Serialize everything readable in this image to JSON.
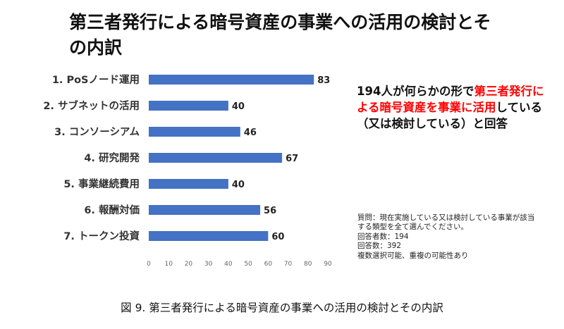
{
  "title": "第三者発行による暗号資産の事業への活用の検討とその内訳",
  "chart_data": {
    "type": "bar",
    "orientation": "horizontal",
    "categories": [
      "1. PoSノード運用",
      "2. サブネットの活用",
      "3. コンソーシアム",
      "4. 研究開発",
      "5. 事業継続費用",
      "6. 報酬対価",
      "7. トークン投資"
    ],
    "values": [
      83,
      40,
      46,
      67,
      40,
      56,
      60
    ],
    "xlim": [
      0,
      90
    ],
    "xticks": [
      0,
      10,
      20,
      30,
      40,
      50,
      60,
      70,
      80,
      90
    ],
    "bar_color": "#4472c4",
    "grid": false,
    "legend": "none"
  },
  "callout": {
    "part1": "194人が何らかの形で",
    "part2_red": "第三者発行による暗号資産を事業に活用",
    "part3": "している（又は検討している）と回答",
    "highlight_color": "#ff0000"
  },
  "notes": [
    "質問：現在実施している又は検討している事業が該当する類型を全て選んでください。",
    "回答者数：194",
    "回答数：392",
    "複数選択可能、重複の可能性あり"
  ],
  "caption": "図 9. 第三者発行による暗号資産の事業への活用の検討とその内訳"
}
